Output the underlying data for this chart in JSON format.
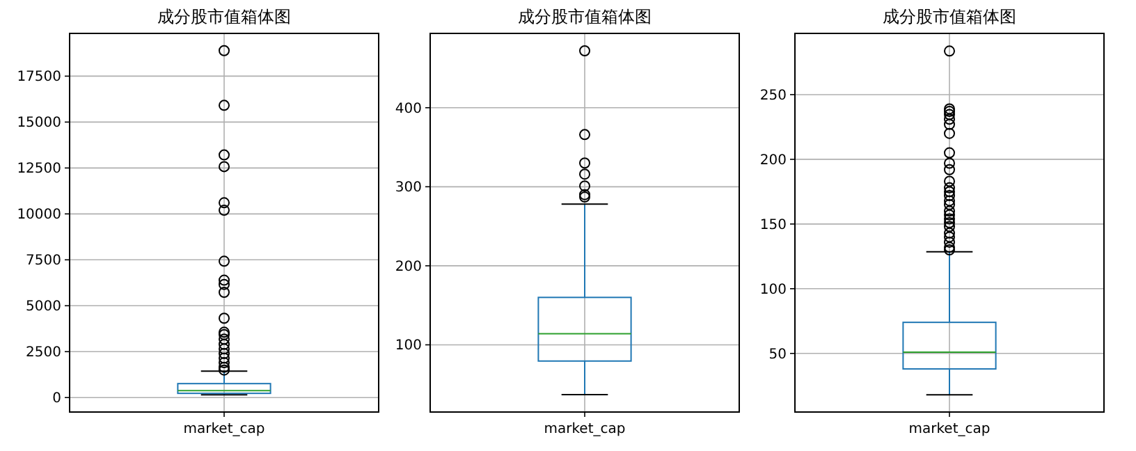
{
  "chart_data": [
    {
      "type": "box",
      "title": "成分股市值箱体图",
      "categories": [
        "market_cap"
      ],
      "color": "#1f77b4",
      "grid": true,
      "ylim": [
        -787,
        19827
      ],
      "yticks": [
        0,
        2500,
        5000,
        7500,
        10000,
        12500,
        15000,
        17500
      ],
      "boxes": [
        {
          "low": 150,
          "q1": 230,
          "median": 380,
          "q3": 760,
          "high": 1440,
          "outliers": [
            18890,
            15910,
            13210,
            12575,
            10605,
            10200,
            7425,
            6390,
            6160,
            5730,
            4320,
            3560,
            3430,
            3180,
            2900,
            2650,
            2400,
            2150,
            1900,
            1650,
            1500
          ]
        }
      ]
    },
    {
      "type": "box",
      "title": "成分股市值箱体图",
      "categories": [
        "market_cap"
      ],
      "color": "#1f77b4",
      "grid": true,
      "ylim": [
        15,
        494
      ],
      "yticks": [
        100,
        200,
        300,
        400
      ],
      "boxes": [
        {
          "low": 37,
          "q1": 79.5,
          "median": 114,
          "q3": 160,
          "high": 278,
          "outliers": [
            472,
            366,
            330,
            316,
            301,
            290,
            287
          ]
        }
      ]
    },
    {
      "type": "box",
      "title": "成分股市值箱体图",
      "categories": [
        "market_cap"
      ],
      "color": "#1f77b4",
      "grid": true,
      "ylim": [
        4.7,
        297.3
      ],
      "yticks": [
        50,
        100,
        150,
        200,
        250
      ],
      "boxes": [
        {
          "low": 18,
          "q1": 38,
          "median": 51,
          "q3": 74,
          "high": 128.5,
          "outliers": [
            283.7,
            239,
            237,
            234.6,
            231,
            227,
            220,
            205,
            197,
            192,
            183,
            178,
            175,
            172,
            168,
            165,
            160,
            157,
            154,
            151,
            148,
            143,
            140,
            136,
            132,
            130
          ]
        }
      ]
    }
  ]
}
